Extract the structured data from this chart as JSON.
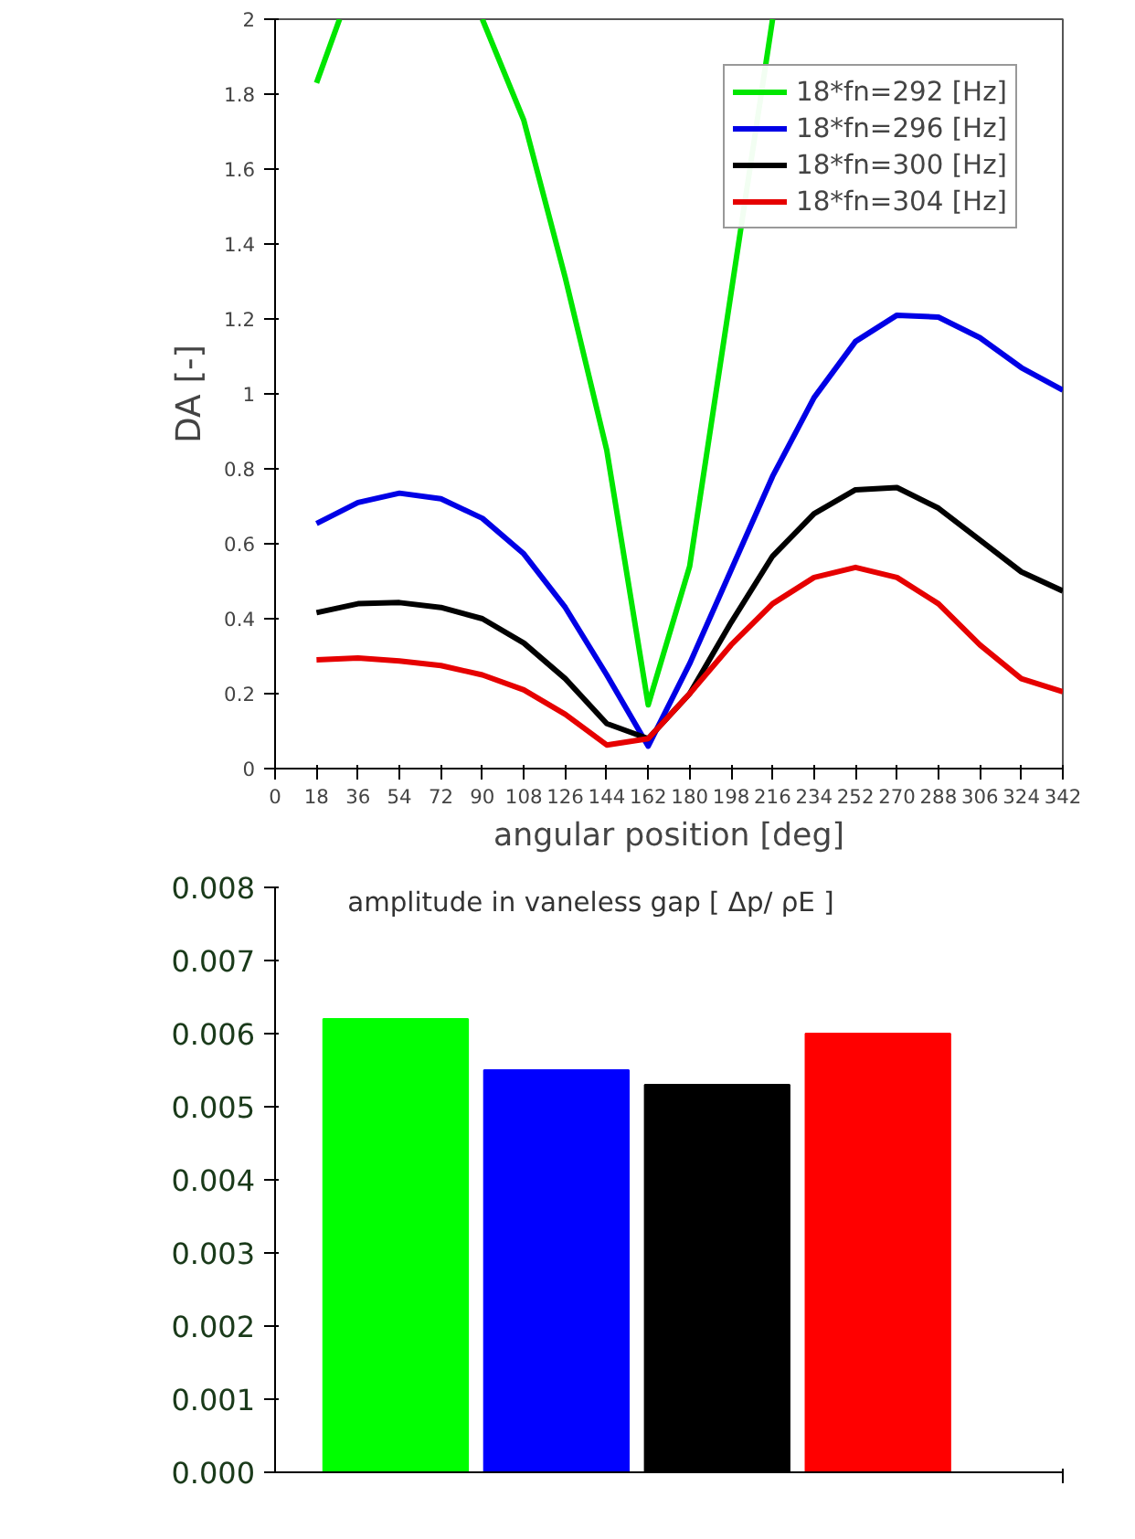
{
  "chart_data": [
    {
      "type": "line",
      "xlabel": "angular position [deg]",
      "ylabel": "DA [-]",
      "x": [
        18,
        36,
        54,
        72,
        90,
        108,
        126,
        144,
        162,
        180,
        198,
        216,
        234,
        252,
        270,
        288,
        306,
        324,
        342
      ],
      "xlim": [
        0,
        342
      ],
      "xticks": [
        0,
        18,
        36,
        54,
        72,
        90,
        108,
        126,
        144,
        162,
        180,
        198,
        216,
        234,
        252,
        270,
        288,
        306,
        324,
        342
      ],
      "ylim": [
        0,
        2
      ],
      "yticks": [
        0,
        0.2,
        0.4,
        0.6,
        0.8,
        1,
        1.2,
        1.4,
        1.6,
        1.8,
        2
      ],
      "grid": false,
      "legend": "top right",
      "marker": "none",
      "line_style": "solid",
      "series": [
        {
          "name": "18*fn=292 [Hz]",
          "color": "#00e600",
          "x": [
            18,
            28,
            54,
            90,
            108,
            126,
            144,
            162,
            180,
            198,
            216
          ],
          "values": [
            1.83,
            2.0,
            null,
            2.0,
            1.73,
            1.31,
            0.85,
            0.17,
            0.54,
            1.27,
            2.0
          ]
        },
        {
          "name": "18*fn=296 [Hz]",
          "color": "#0000e6",
          "values": [
            0.654,
            0.71,
            0.735,
            0.72,
            0.668,
            0.573,
            0.43,
            0.25,
            0.06,
            0.28,
            0.53,
            0.78,
            0.99,
            1.14,
            1.21,
            1.205,
            1.15,
            1.07,
            1.01
          ]
        },
        {
          "name": "18*fn=300 [Hz]",
          "color": "#000000",
          "values": [
            0.416,
            0.44,
            0.443,
            0.43,
            0.4,
            0.335,
            0.24,
            0.12,
            0.08,
            0.2,
            0.39,
            0.567,
            0.68,
            0.744,
            0.75,
            0.695,
            0.61,
            0.525,
            0.474
          ]
        },
        {
          "name": "18*fn=304 [Hz]",
          "color": "#e60000",
          "values": [
            0.29,
            0.295,
            0.287,
            0.275,
            0.25,
            0.21,
            0.145,
            0.063,
            0.08,
            0.2,
            0.33,
            0.44,
            0.51,
            0.537,
            0.51,
            0.44,
            0.33,
            0.24,
            0.205
          ]
        }
      ]
    },
    {
      "type": "bar",
      "title": "amplitude in vaneless gap [ Δp/ ρE ]",
      "categories": [
        null,
        null,
        null,
        null
      ],
      "values": [
        0.0062,
        0.0055,
        0.0053,
        0.006
      ],
      "colors": [
        "#00ff00",
        "#0000ff",
        "#000000",
        "#ff0000"
      ],
      "ylim": [
        0,
        0.008
      ],
      "yticks": [
        {
          "value": 0,
          "label": "0.000"
        },
        0.001,
        0.002,
        0.003,
        0.004,
        0.005,
        0.006,
        0.007,
        0.008
      ],
      "grid": false
    }
  ]
}
